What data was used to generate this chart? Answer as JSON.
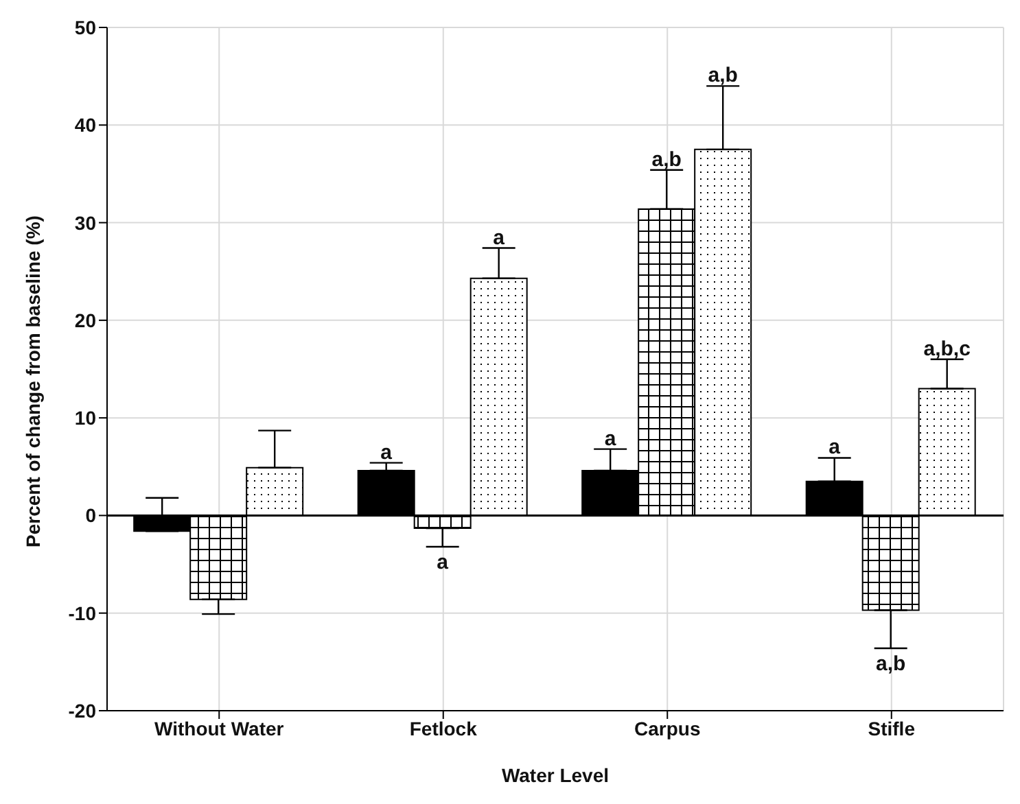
{
  "chart_data": {
    "type": "bar",
    "xlabel": "Water Level",
    "ylabel": "Percent of change from baseline (%)",
    "categories": [
      "Without Water",
      "Fetlock",
      "Carpus",
      "Stifle"
    ],
    "series": [
      {
        "color": "#000000",
        "values": [
          -1.6,
          4.6,
          4.6,
          3.5
        ],
        "errors": [
          [
            -1.6,
            1.8
          ],
          [
            4.6,
            5.4
          ],
          [
            4.6,
            6.8
          ],
          [
            3.5,
            5.9
          ]
        ],
        "value_labels": [
          null,
          "a",
          "a",
          "a"
        ]
      },
      {
        "color": "#000000",
        "values": [
          -8.6,
          -1.3,
          31.4,
          -9.7
        ],
        "errors": [
          [
            -10.1,
            -8.6
          ],
          [
            -3.2,
            -1.3
          ],
          [
            31.4,
            35.4
          ],
          [
            -13.6,
            -9.7
          ]
        ],
        "value_labels": [
          null,
          "a",
          "a,b",
          "a,b"
        ]
      },
      {
        "color": "#000000",
        "values": [
          4.9,
          24.3,
          37.5,
          13
        ],
        "errors": [
          [
            4.9,
            8.7
          ],
          [
            24.3,
            27.4
          ],
          [
            37.5,
            44
          ],
          [
            13,
            16
          ]
        ],
        "value_labels": [
          null,
          "a",
          "a,b",
          "a,b,c"
        ]
      }
    ],
    "ylim": [
      -20,
      50
    ],
    "yticks": [
      -20,
      -10,
      0,
      10,
      20,
      30,
      40,
      50
    ],
    "grid": true,
    "legend": false,
    "ref_lines": [
      {
        "axis": "y",
        "value": 0
      }
    ]
  }
}
